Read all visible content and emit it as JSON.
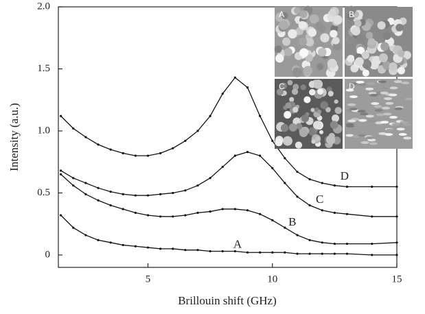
{
  "chart_data": {
    "type": "line",
    "xlabel": "Brillouin shift (GHz)",
    "ylabel": "Intensity (a.u.)",
    "x": [
      1.5,
      2,
      2.5,
      3,
      3.5,
      4,
      4.5,
      5,
      5.5,
      6,
      6.5,
      7,
      7.5,
      8,
      8.5,
      9,
      9.5,
      10,
      10.5,
      11,
      11.5,
      12,
      12.5,
      13,
      14,
      15
    ],
    "series": [
      {
        "name": "A",
        "color": "#111111",
        "values": [
          0.32,
          0.22,
          0.16,
          0.12,
          0.1,
          0.08,
          0.07,
          0.06,
          0.05,
          0.05,
          0.04,
          0.04,
          0.03,
          0.03,
          0.03,
          0.02,
          0.02,
          0.02,
          0.02,
          0.01,
          0.01,
          0.01,
          0.01,
          0.01,
          0,
          0
        ]
      },
      {
        "name": "B",
        "color": "#111111",
        "values": [
          0.65,
          0.56,
          0.49,
          0.44,
          0.4,
          0.37,
          0.34,
          0.32,
          0.31,
          0.31,
          0.32,
          0.34,
          0.35,
          0.37,
          0.37,
          0.36,
          0.33,
          0.28,
          0.22,
          0.16,
          0.12,
          0.1,
          0.09,
          0.09,
          0.09,
          0.1
        ]
      },
      {
        "name": "C",
        "color": "#111111",
        "values": [
          0.68,
          0.62,
          0.58,
          0.54,
          0.51,
          0.49,
          0.48,
          0.48,
          0.49,
          0.5,
          0.52,
          0.56,
          0.62,
          0.71,
          0.8,
          0.83,
          0.8,
          0.7,
          0.58,
          0.47,
          0.4,
          0.36,
          0.34,
          0.33,
          0.31,
          0.31
        ]
      },
      {
        "name": "D",
        "color": "#111111",
        "values": [
          1.12,
          1.02,
          0.95,
          0.89,
          0.85,
          0.82,
          0.8,
          0.8,
          0.82,
          0.86,
          0.92,
          1.0,
          1.12,
          1.3,
          1.43,
          1.35,
          1.12,
          0.92,
          0.78,
          0.67,
          0.61,
          0.58,
          0.56,
          0.55,
          0.55,
          0.55
        ]
      }
    ],
    "xlim": [
      1.4,
      15
    ],
    "xticks": [
      5,
      10,
      15
    ],
    "ylim": [
      -0.1,
      2.0
    ],
    "yticks": [
      0,
      0.5,
      {
        "value": 1.0,
        "label": "1.0"
      },
      1.5,
      {
        "value": 2.0,
        "label": "2.0"
      }
    ],
    "inset_labels": [
      "A",
      "B",
      "C",
      "D"
    ]
  }
}
